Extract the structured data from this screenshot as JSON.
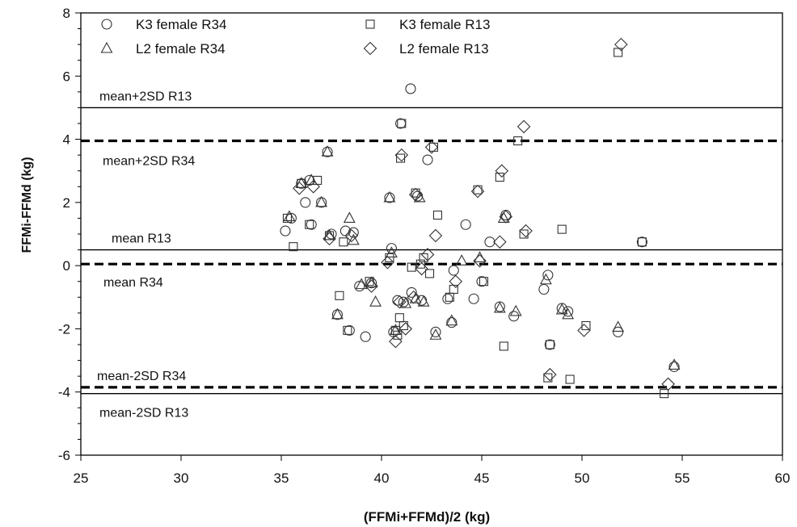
{
  "chart_data": {
    "type": "scatter",
    "xlabel": "(FFMi+FFMd)/2 (kg)",
    "ylabel": "FFMi-FFMd (kg)",
    "xlim": [
      25,
      60
    ],
    "ylim": [
      -6,
      8
    ],
    "x_ticks": [
      25,
      30,
      35,
      40,
      45,
      50,
      55,
      60
    ],
    "y_ticks": [
      -6,
      -4,
      -2,
      0,
      2,
      4,
      6,
      8
    ],
    "grid": false,
    "legend_position": "top",
    "reference_lines": [
      {
        "label": "mean+2SD R13",
        "y": 5.0,
        "style": "solid"
      },
      {
        "label": "mean+2SD R34",
        "y": 3.95,
        "style": "dashed"
      },
      {
        "label": "mean R13",
        "y": 0.5,
        "style": "solid"
      },
      {
        "label": "mean R34",
        "y": 0.05,
        "style": "dashed"
      },
      {
        "label": "mean-2SD R34",
        "y": -3.85,
        "style": "dashed"
      },
      {
        "label": "mean-2SD R13",
        "y": -4.05,
        "style": "solid"
      }
    ],
    "series": [
      {
        "name": "K3 female R34",
        "marker": "circle",
        "points": [
          [
            35.2,
            1.1
          ],
          [
            35.5,
            1.5
          ],
          [
            36.0,
            2.6
          ],
          [
            36.2,
            2.0
          ],
          [
            36.4,
            2.7
          ],
          [
            36.5,
            1.3
          ],
          [
            37.0,
            2.0
          ],
          [
            37.3,
            3.6
          ],
          [
            37.5,
            1.0
          ],
          [
            37.8,
            -1.55
          ],
          [
            38.2,
            1.1
          ],
          [
            38.6,
            1.05
          ],
          [
            38.4,
            -2.05
          ],
          [
            38.9,
            -0.65
          ],
          [
            39.2,
            -2.25
          ],
          [
            39.5,
            -0.55
          ],
          [
            40.4,
            2.15
          ],
          [
            40.5,
            0.55
          ],
          [
            40.6,
            -2.1
          ],
          [
            40.8,
            -1.1
          ],
          [
            40.95,
            4.5
          ],
          [
            41.1,
            -1.15
          ],
          [
            41.45,
            5.6
          ],
          [
            41.5,
            -0.85
          ],
          [
            41.8,
            2.2
          ],
          [
            42.0,
            -1.1
          ],
          [
            42.3,
            3.35
          ],
          [
            42.7,
            -2.1
          ],
          [
            43.3,
            -1.05
          ],
          [
            43.5,
            -1.8
          ],
          [
            43.6,
            -0.15
          ],
          [
            44.2,
            1.3
          ],
          [
            44.6,
            -1.05
          ],
          [
            45.0,
            -0.5
          ],
          [
            45.4,
            0.75
          ],
          [
            45.9,
            -1.3
          ],
          [
            46.2,
            1.6
          ],
          [
            46.6,
            -1.6
          ],
          [
            48.1,
            -0.75
          ],
          [
            48.3,
            -0.3
          ],
          [
            48.4,
            -2.5
          ],
          [
            49.0,
            -1.35
          ],
          [
            49.3,
            -1.45
          ],
          [
            51.8,
            -2.1
          ],
          [
            53.0,
            0.75
          ],
          [
            54.6,
            -3.2
          ]
        ]
      },
      {
        "name": "K3 female R13",
        "marker": "square",
        "points": [
          [
            35.3,
            1.5
          ],
          [
            35.6,
            0.6
          ],
          [
            36.0,
            2.6
          ],
          [
            36.4,
            1.3
          ],
          [
            36.8,
            2.7
          ],
          [
            37.4,
            0.95
          ],
          [
            37.9,
            -0.95
          ],
          [
            38.1,
            0.75
          ],
          [
            38.3,
            -2.05
          ],
          [
            39.4,
            -0.5
          ],
          [
            40.4,
            0.25
          ],
          [
            40.7,
            -2.05
          ],
          [
            40.8,
            -2.2
          ],
          [
            40.9,
            -1.65
          ],
          [
            40.95,
            3.4
          ],
          [
            41.0,
            4.5
          ],
          [
            41.1,
            -1.9
          ],
          [
            41.5,
            -0.05
          ],
          [
            41.7,
            2.3
          ],
          [
            41.95,
            0.05
          ],
          [
            42.1,
            0.25
          ],
          [
            42.4,
            -0.25
          ],
          [
            42.6,
            3.75
          ],
          [
            42.8,
            1.6
          ],
          [
            43.4,
            -1.0
          ],
          [
            43.6,
            -0.75
          ],
          [
            44.8,
            2.4
          ],
          [
            45.1,
            -0.5
          ],
          [
            45.9,
            2.8
          ],
          [
            46.1,
            -2.55
          ],
          [
            46.8,
            3.95
          ],
          [
            47.1,
            1.0
          ],
          [
            48.3,
            -3.55
          ],
          [
            48.4,
            -2.5
          ],
          [
            49.0,
            1.15
          ],
          [
            49.4,
            -3.6
          ],
          [
            50.2,
            -1.9
          ],
          [
            51.8,
            6.75
          ],
          [
            53.0,
            0.75
          ],
          [
            54.1,
            -4.05
          ]
        ]
      },
      {
        "name": "L2 female R34",
        "marker": "triangle",
        "points": [
          [
            35.4,
            1.55
          ],
          [
            36.0,
            2.6
          ],
          [
            36.5,
            2.7
          ],
          [
            37.0,
            2.0
          ],
          [
            37.3,
            3.6
          ],
          [
            37.4,
            0.95
          ],
          [
            37.8,
            -1.55
          ],
          [
            38.4,
            1.5
          ],
          [
            38.6,
            0.8
          ],
          [
            39.0,
            -0.6
          ],
          [
            39.5,
            -0.55
          ],
          [
            39.7,
            -1.15
          ],
          [
            40.4,
            2.15
          ],
          [
            40.5,
            0.4
          ],
          [
            40.7,
            -2.05
          ],
          [
            41.2,
            -1.2
          ],
          [
            41.7,
            -1.05
          ],
          [
            41.9,
            2.15
          ],
          [
            42.1,
            -1.15
          ],
          [
            42.7,
            -2.2
          ],
          [
            43.5,
            -1.75
          ],
          [
            44.0,
            0.15
          ],
          [
            44.9,
            0.25
          ],
          [
            45.9,
            -1.35
          ],
          [
            46.1,
            1.5
          ],
          [
            46.7,
            -1.45
          ],
          [
            48.2,
            -0.45
          ],
          [
            49.0,
            -1.4
          ],
          [
            49.3,
            -1.55
          ],
          [
            51.8,
            -1.95
          ],
          [
            54.6,
            -3.15
          ]
        ]
      },
      {
        "name": "L2 female R13",
        "marker": "diamond",
        "points": [
          [
            35.9,
            2.45
          ],
          [
            36.6,
            2.5
          ],
          [
            37.4,
            0.85
          ],
          [
            38.5,
            0.95
          ],
          [
            39.5,
            -0.65
          ],
          [
            40.3,
            0.1
          ],
          [
            40.7,
            -2.4
          ],
          [
            40.9,
            -1.15
          ],
          [
            41.0,
            3.5
          ],
          [
            41.2,
            -2.0
          ],
          [
            41.6,
            -1.0
          ],
          [
            41.7,
            2.25
          ],
          [
            42.0,
            -0.1
          ],
          [
            42.3,
            0.35
          ],
          [
            42.5,
            3.75
          ],
          [
            42.7,
            0.95
          ],
          [
            43.7,
            -0.5
          ],
          [
            44.8,
            2.35
          ],
          [
            44.9,
            0.15
          ],
          [
            45.9,
            0.75
          ],
          [
            46.0,
            3.0
          ],
          [
            46.2,
            1.55
          ],
          [
            47.1,
            4.4
          ],
          [
            47.2,
            1.1
          ],
          [
            48.4,
            -3.45
          ],
          [
            50.1,
            -2.05
          ],
          [
            51.95,
            7.0
          ],
          [
            54.3,
            -3.75
          ]
        ]
      }
    ]
  }
}
